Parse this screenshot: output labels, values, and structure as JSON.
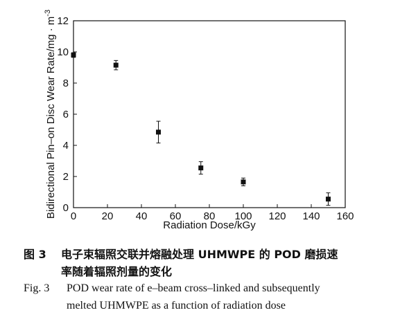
{
  "chart_data": {
    "type": "scatter",
    "xlabel": "Radiation Dose/kGy",
    "ylabel": "Bidirectional Pin–on Disc Wear Rate/mg · m",
    "ylabel_sup": "-3",
    "xlim": [
      0,
      160
    ],
    "ylim": [
      0,
      12
    ],
    "xticks": [
      0,
      20,
      40,
      60,
      80,
      100,
      120,
      140,
      160
    ],
    "yticks": [
      0,
      2,
      4,
      6,
      8,
      10,
      12
    ],
    "grid": false,
    "marker": "square",
    "error_bars": true,
    "points": [
      {
        "x": 0,
        "y": 9.8,
        "err": 0.15
      },
      {
        "x": 25,
        "y": 9.15,
        "err": 0.3
      },
      {
        "x": 50,
        "y": 4.85,
        "err": 0.7
      },
      {
        "x": 75,
        "y": 2.55,
        "err": 0.4
      },
      {
        "x": 100,
        "y": 1.65,
        "err": 0.25
      },
      {
        "x": 150,
        "y": 0.55,
        "err": 0.4
      }
    ]
  },
  "caption": {
    "cn_label": "图 3",
    "cn_line1": "电子束辐照交联并熔融处理 UHMWPE 的 POD 磨损速",
    "cn_line2": "率随着辐照剂量的变化",
    "en_label": "Fig. 3",
    "en_line1": "POD wear rate of e–beam cross–linked and subsequently",
    "en_line2": "melted UHMWPE as a function of radiation dose"
  }
}
